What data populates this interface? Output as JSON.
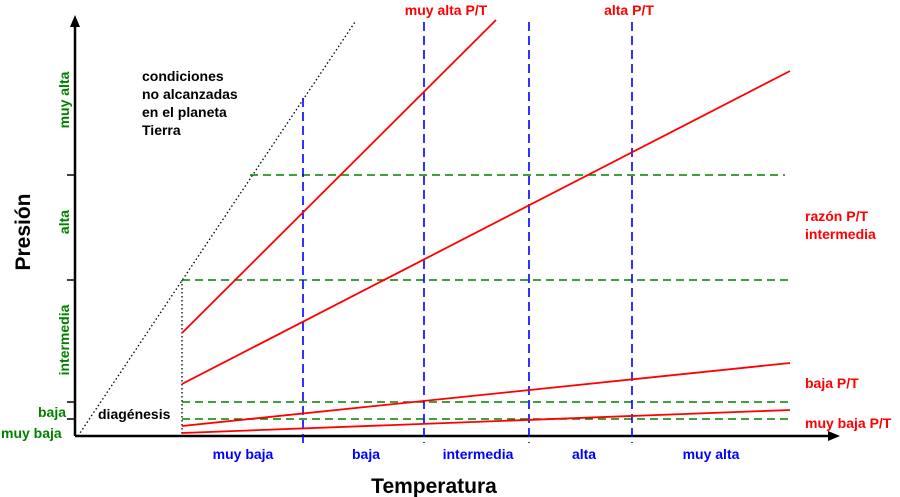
{
  "diagram": {
    "axis_titles": {
      "y": "Presión",
      "x": "Temperatura"
    },
    "pressure_levels": [
      "muy baja",
      "baja",
      "intermedia",
      "alta",
      "muy alta"
    ],
    "temperature_levels": [
      "muy baja",
      "baja",
      "intermedia",
      "alta",
      "muy alta"
    ],
    "ratio_labels": {
      "muy_alta": "muy alta P/T",
      "alta": "alta P/T",
      "intermedia_line1": "razón P/T",
      "intermedia_line2": "intermedia",
      "baja": "baja P/T",
      "muy_baja": "muy baja P/T"
    },
    "regions": {
      "unreachable_line1": "condiciones",
      "unreachable_line2": "no alcanzadas",
      "unreachable_line3": "en el planeta",
      "unreachable_line4": "Tierra",
      "diagenesis": "diagénesis"
    },
    "colors": {
      "pressure_text": "#008000",
      "temperature_text": "#0000ff",
      "ratio_lines": "#ff0000",
      "pressure_dividers": "#008000",
      "temperature_dividers": "#0000ff",
      "axis": "#000000"
    }
  }
}
